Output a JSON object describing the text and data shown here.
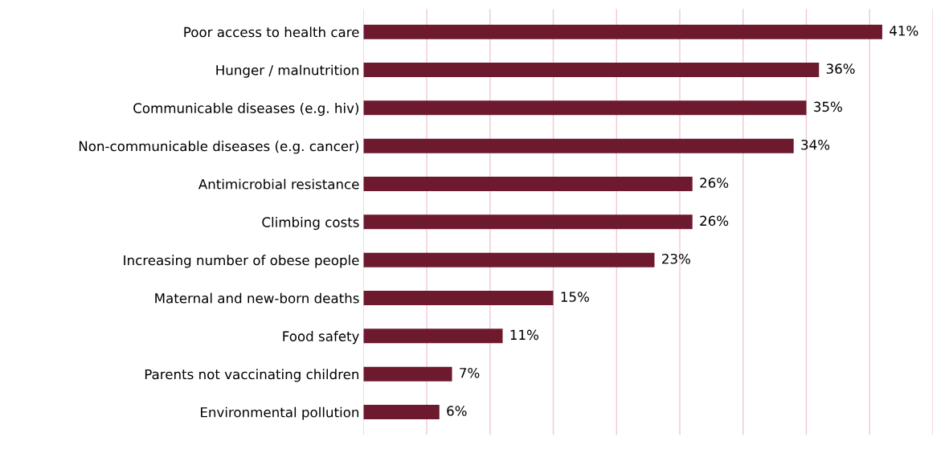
{
  "chart_data": {
    "type": "bar",
    "orientation": "horizontal",
    "categories": [
      "Poor access to health care",
      "Hunger / malnutrition",
      "Communicable diseases (e.g. hiv)",
      "Non-communicable diseases (e.g. cancer)",
      "Antimicrobial resistance",
      "Climbing costs",
      "Increasing number of obese people",
      "Maternal and new-born deaths",
      "Food safety",
      "Parents not vaccinating children",
      "Environmental pollution"
    ],
    "values": [
      41,
      36,
      35,
      34,
      26,
      26,
      23,
      15,
      11,
      7,
      6
    ],
    "value_labels": [
      "41%",
      "36%",
      "35%",
      "34%",
      "26%",
      "26%",
      "23%",
      "15%",
      "11%",
      "7%",
      "6%"
    ],
    "color": "#6d1a2f",
    "xlim": [
      0,
      45
    ],
    "xticks": [
      {
        "value": 0,
        "label": null
      },
      {
        "value": 5,
        "label": null
      },
      {
        "value": 10,
        "label": null
      },
      {
        "value": 15,
        "label": null
      },
      {
        "value": 20,
        "label": null
      },
      {
        "value": 25,
        "label": null
      },
      {
        "value": 30,
        "label": null
      },
      {
        "value": 35,
        "label": null
      },
      {
        "value": 40,
        "label": null
      },
      {
        "value": 45,
        "label": null
      }
    ],
    "tick_labels": "y",
    "grid": "x",
    "legend": false
  }
}
